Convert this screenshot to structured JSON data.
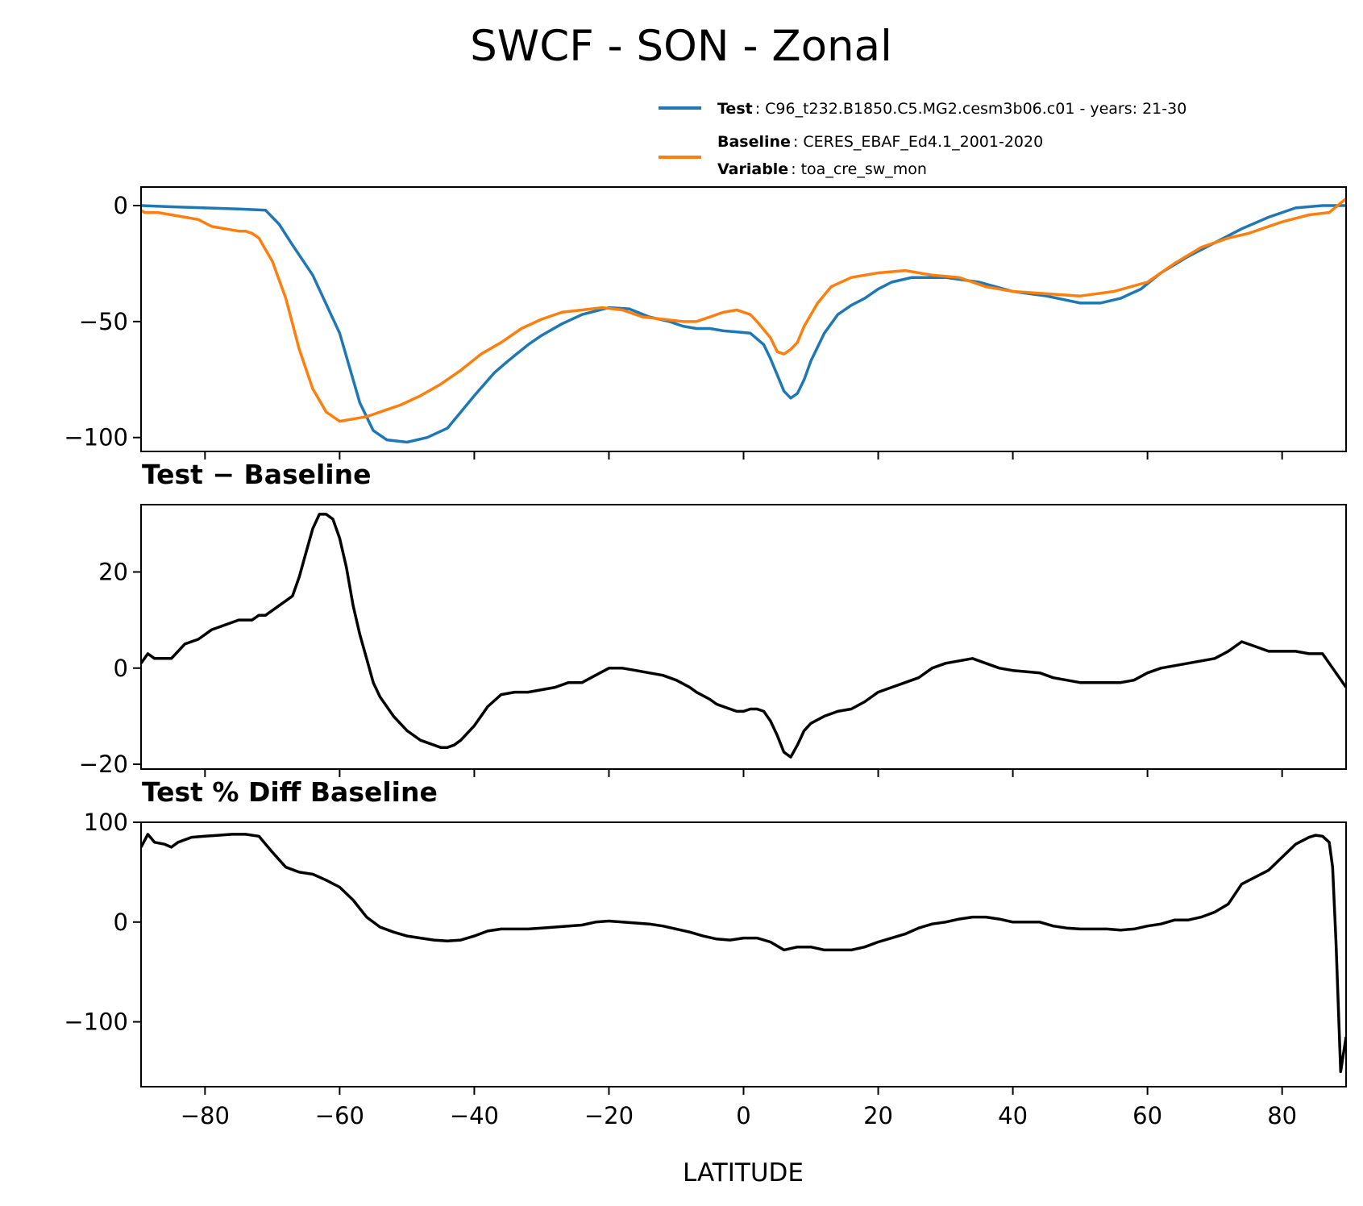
{
  "title": "SWCF - SON - Zonal",
  "legend": {
    "test": {
      "label": "Test",
      "value": "C96_t232.B1850.C5.MG2.cesm3b06.c01 - years: 21-30",
      "color": "#1f77b4"
    },
    "baseline": {
      "label": "Baseline",
      "value": "CERES_EBAF_Ed4.1_2001-2020",
      "color": "#ff7f0e"
    },
    "variable": {
      "label": "Variable",
      "value": "toa_cre_sw_mon"
    }
  },
  "panel_titles": {
    "diff": "Test − Baseline",
    "pct": "Test % Diff Baseline"
  },
  "x_axis": {
    "label": "LATITUDE",
    "range": [
      -89.5,
      89.5
    ],
    "ticks": [
      -80,
      -60,
      -40,
      -20,
      0,
      20,
      40,
      60,
      80
    ],
    "tick_labels": [
      "−80",
      "−60",
      "−40",
      "−20",
      "0",
      "20",
      "40",
      "60",
      "80"
    ]
  },
  "chart_data": [
    {
      "type": "line",
      "title": "SWCF - SON - Zonal",
      "ylim": [
        -106,
        8
      ],
      "yticks": [
        0,
        -50,
        -100
      ],
      "ytick_labels": [
        "0",
        "−50",
        "−100"
      ],
      "series": [
        {
          "name": "Test",
          "color": "#1f77b4",
          "x": [
            -89.5,
            -85,
            -80,
            -75,
            -71,
            -69,
            -67,
            -64,
            -60,
            -57,
            -55,
            -53,
            -50,
            -47,
            -44,
            -42,
            -40,
            -37,
            -35,
            -32,
            -30,
            -27,
            -24,
            -20,
            -17,
            -14,
            -11,
            -9,
            -7,
            -5,
            -3,
            -1,
            1,
            3,
            4,
            5,
            6,
            7,
            8,
            9,
            10,
            12,
            14,
            16,
            18,
            20,
            22,
            25,
            30,
            35,
            40,
            45,
            50,
            53,
            56,
            59,
            62,
            66,
            70,
            74,
            78,
            82,
            86,
            89.5
          ],
          "y": [
            0,
            -0.5,
            -1,
            -1.5,
            -2,
            -8,
            -17,
            -30,
            -55,
            -85,
            -97,
            -101,
            -102,
            -100,
            -96,
            -89,
            -82,
            -72,
            -67,
            -60,
            -56,
            -51,
            -47,
            -44,
            -44.5,
            -48,
            -50,
            -52,
            -53,
            -53,
            -54,
            -54.5,
            -55,
            -60,
            -66,
            -73,
            -80,
            -83,
            -81,
            -75,
            -67,
            -55,
            -47,
            -43,
            -40,
            -36,
            -33,
            -31,
            -31,
            -33,
            -37,
            -39,
            -42,
            -42,
            -40,
            -36,
            -29,
            -22,
            -16,
            -10,
            -5,
            -1,
            0,
            0
          ]
        },
        {
          "name": "Baseline",
          "color": "#ff7f0e",
          "x": [
            -89.5,
            -89,
            -87,
            -85,
            -83,
            -81,
            -79,
            -77,
            -75,
            -74,
            -73,
            -72,
            -71,
            -70,
            -68,
            -66,
            -64,
            -62,
            -60,
            -58,
            -56,
            -55,
            -53,
            -51,
            -48,
            -45,
            -42,
            -39,
            -36,
            -33,
            -30,
            -27,
            -24,
            -21,
            -18,
            -15,
            -12,
            -9,
            -7,
            -5,
            -3,
            -1,
            1,
            2,
            4,
            5,
            6,
            7,
            8,
            9,
            11,
            13,
            16,
            20,
            24,
            28,
            32,
            36,
            40,
            45,
            50,
            55,
            60,
            64,
            68,
            72,
            75,
            80,
            84,
            87,
            89.5
          ],
          "y": [
            -2,
            -3,
            -3,
            -4,
            -5,
            -6,
            -9,
            -10,
            -11,
            -11,
            -12,
            -14,
            -19,
            -24,
            -40,
            -62,
            -79,
            -89,
            -93,
            -92,
            -91,
            -90,
            -88,
            -86,
            -82,
            -77,
            -71,
            -64,
            -59,
            -53,
            -49,
            -46,
            -45,
            -44,
            -45,
            -48,
            -49,
            -50,
            -50,
            -48,
            -46,
            -45,
            -47,
            -50,
            -57,
            -63,
            -64,
            -62,
            -59,
            -52,
            -42,
            -35,
            -31,
            -29,
            -28,
            -30,
            -31,
            -35,
            -37,
            -38,
            -39,
            -37,
            -33,
            -25,
            -18,
            -14,
            -12,
            -7,
            -4,
            -3,
            3
          ]
        }
      ]
    },
    {
      "type": "line",
      "title": "Test − Baseline",
      "ylim": [
        -21,
        34
      ],
      "yticks": [
        20,
        0,
        -20
      ],
      "ytick_labels": [
        "20",
        "0",
        "−20"
      ],
      "series": [
        {
          "name": "",
          "color": "#000000",
          "x": [
            -89.5,
            -88.5,
            -87.5,
            -85,
            -83,
            -81,
            -79,
            -77,
            -75,
            -73,
            -72,
            -71,
            -70,
            -68,
            -67,
            -66,
            -65,
            -64,
            -63,
            -62,
            -61,
            -60,
            -59,
            -58,
            -57,
            -56,
            -55,
            -54,
            -52,
            -50,
            -48,
            -46,
            -45,
            -44,
            -43,
            -42,
            -40,
            -38,
            -36,
            -34,
            -32,
            -30,
            -28,
            -26,
            -24,
            -22,
            -20,
            -18,
            -16,
            -14,
            -12,
            -10,
            -8,
            -7,
            -5,
            -4,
            -2,
            -1,
            0,
            1,
            2,
            3,
            4,
            5,
            6,
            7,
            8,
            9,
            10,
            12,
            14,
            16,
            18,
            20,
            22,
            24,
            26,
            28,
            30,
            32,
            34,
            36,
            38,
            40,
            44,
            46,
            48,
            50,
            54,
            56,
            58,
            60,
            62,
            64,
            66,
            68,
            70,
            72,
            74,
            76,
            78,
            80,
            82,
            84,
            86,
            87,
            89.5
          ],
          "y": [
            1,
            3,
            2,
            2,
            5,
            6,
            8,
            9,
            10,
            10,
            11,
            11,
            12,
            14,
            15,
            19,
            24,
            29,
            32,
            32,
            31,
            27,
            21,
            13,
            7,
            2,
            -3,
            -6,
            -10,
            -13,
            -15,
            -16,
            -16.5,
            -16.5,
            -16,
            -15,
            -12,
            -8,
            -5.5,
            -5,
            -5,
            -4.5,
            -4,
            -3,
            -3,
            -1.5,
            0,
            0,
            -0.5,
            -1,
            -1.5,
            -2.5,
            -4,
            -5,
            -6.5,
            -7.5,
            -8.5,
            -9,
            -9,
            -8.5,
            -8.5,
            -9,
            -11,
            -14,
            -17.5,
            -18.5,
            -16,
            -13,
            -11.5,
            -10,
            -9,
            -8.5,
            -7,
            -5,
            -4,
            -3,
            -2,
            0,
            1,
            1.5,
            2,
            1,
            0,
            -0.5,
            -1,
            -2,
            -2.5,
            -3,
            -3,
            -3,
            -2.5,
            -1,
            0,
            0.5,
            1,
            1.5,
            2,
            3.5,
            5.5,
            4.5,
            3.5,
            3.5,
            3.5,
            3,
            3,
            1,
            -4
          ]
        }
      ]
    },
    {
      "type": "line",
      "title": "Test % Diff Baseline",
      "ylim": [
        -165,
        100
      ],
      "yticks": [
        100,
        0,
        -100
      ],
      "ytick_labels": [
        "100",
        "0",
        "−100"
      ],
      "series": [
        {
          "name": "",
          "color": "#000000",
          "x": [
            -89.5,
            -88.5,
            -87.5,
            -86,
            -85,
            -84,
            -82,
            -80,
            -78,
            -76,
            -74,
            -72,
            -70,
            -68,
            -66,
            -64,
            -62,
            -60,
            -58,
            -56,
            -54,
            -52,
            -50,
            -48,
            -46,
            -44,
            -42,
            -40,
            -38,
            -36,
            -34,
            -32,
            -30,
            -28,
            -26,
            -24,
            -22,
            -20,
            -18,
            -16,
            -14,
            -12,
            -10,
            -8,
            -6,
            -4,
            -2,
            0,
            2,
            4,
            6,
            8,
            10,
            12,
            14,
            16,
            18,
            20,
            22,
            24,
            26,
            28,
            30,
            32,
            34,
            36,
            38,
            40,
            44,
            46,
            48,
            50,
            54,
            56,
            58,
            60,
            62,
            64,
            66,
            68,
            70,
            72,
            74,
            76,
            78,
            80,
            82,
            84,
            85,
            86,
            87,
            87.5,
            88,
            88.7,
            89.5
          ],
          "y": [
            75,
            88,
            80,
            78,
            75,
            80,
            85,
            86,
            87,
            88,
            88,
            86,
            70,
            55,
            50,
            48,
            42,
            35,
            22,
            5,
            -5,
            -10,
            -14,
            -16,
            -18,
            -19,
            -18,
            -14,
            -9,
            -7,
            -7,
            -7,
            -6,
            -5,
            -4,
            -3,
            0,
            1,
            0,
            -1,
            -2,
            -4,
            -7,
            -10,
            -14,
            -17,
            -18,
            -16,
            -16,
            -20,
            -28,
            -25,
            -25,
            -28,
            -28,
            -28,
            -25,
            -20,
            -16,
            -12,
            -6,
            -2,
            0,
            3,
            5,
            5,
            3,
            0,
            0,
            -4,
            -6,
            -7,
            -7,
            -8,
            -7,
            -4,
            -2,
            2,
            2,
            5,
            10,
            18,
            38,
            45,
            52,
            65,
            78,
            85,
            87,
            86,
            80,
            55,
            -20,
            -150,
            -115
          ]
        }
      ]
    }
  ]
}
